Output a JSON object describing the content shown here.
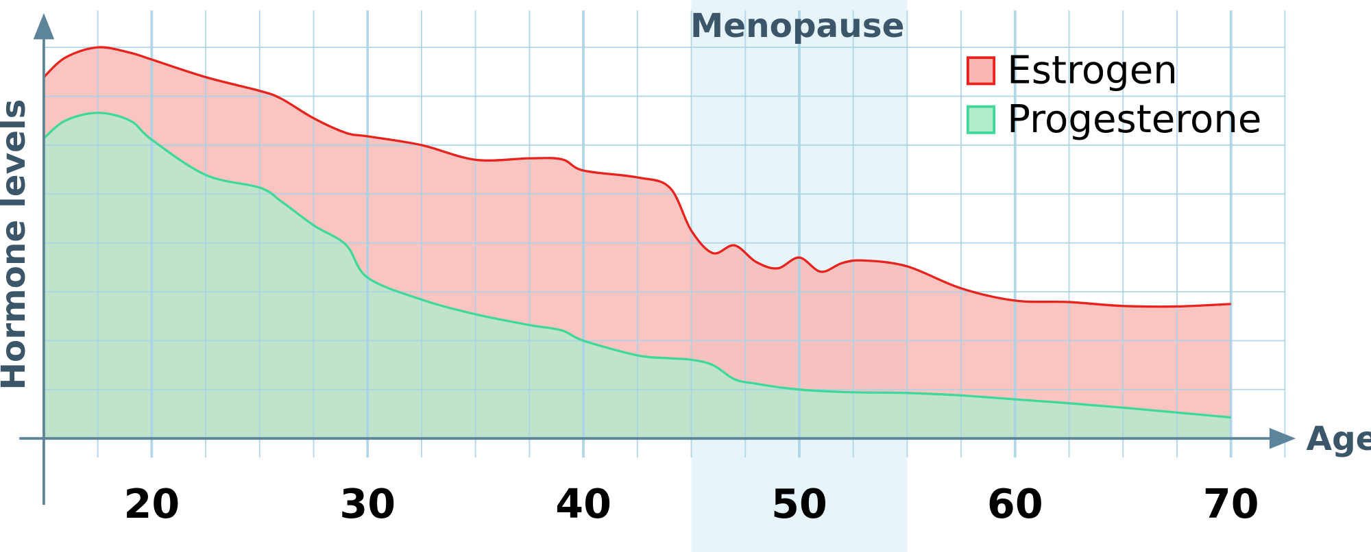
{
  "chart_data": {
    "type": "area",
    "y_label": "Hormone levels",
    "x_label": "Age",
    "highlight": {
      "label": "Menopause",
      "range": [
        45,
        55
      ],
      "color": "#e7f4fa"
    },
    "x": [
      15,
      16,
      17.5,
      19,
      20,
      22.5,
      25,
      26,
      27.5,
      29,
      30,
      32.5,
      35,
      37.5,
      39,
      40,
      42.5,
      44,
      45,
      46,
      47,
      48,
      49,
      50,
      51,
      52,
      53,
      55,
      57.5,
      60,
      62.5,
      65,
      67.5,
      70
    ],
    "series": [
      {
        "name": "Estrogen",
        "color": "#e8221c",
        "fill": "#f9b7b3",
        "values": [
          7.39,
          7.79,
          8.0,
          7.89,
          7.75,
          7.39,
          7.11,
          6.95,
          6.55,
          6.25,
          6.18,
          6.0,
          5.7,
          5.73,
          5.71,
          5.48,
          5.34,
          5.13,
          4.25,
          3.79,
          3.95,
          3.61,
          3.48,
          3.7,
          3.41,
          3.59,
          3.64,
          3.52,
          3.07,
          2.82,
          2.79,
          2.71,
          2.7,
          2.75
        ]
      },
      {
        "name": "Progesterone",
        "color": "#3ed99a",
        "fill": "#b3ebcd",
        "values": [
          6.14,
          6.5,
          6.66,
          6.5,
          6.11,
          5.39,
          5.13,
          4.85,
          4.36,
          3.96,
          3.29,
          2.84,
          2.54,
          2.32,
          2.21,
          2.0,
          1.7,
          1.64,
          1.61,
          1.5,
          1.21,
          1.12,
          1.05,
          1.0,
          0.97,
          0.95,
          0.94,
          0.93,
          0.88,
          0.8,
          0.72,
          0.63,
          0.53,
          0.43
        ]
      }
    ],
    "xlim": [
      15,
      73
    ],
    "ylim": [
      0,
      8.7
    ],
    "xticks": [
      20,
      30,
      40,
      50,
      60,
      70
    ],
    "minor_xticks": [
      17.5,
      22.5,
      25,
      27.5,
      32.5,
      35,
      37.5,
      42.5,
      45,
      47.5,
      52.5,
      55,
      57.5,
      62.5,
      65,
      67.5,
      72.5
    ],
    "yticks": [
      1,
      2,
      3,
      4,
      5,
      6,
      7,
      8
    ],
    "grid": true,
    "legend": "upper right"
  }
}
